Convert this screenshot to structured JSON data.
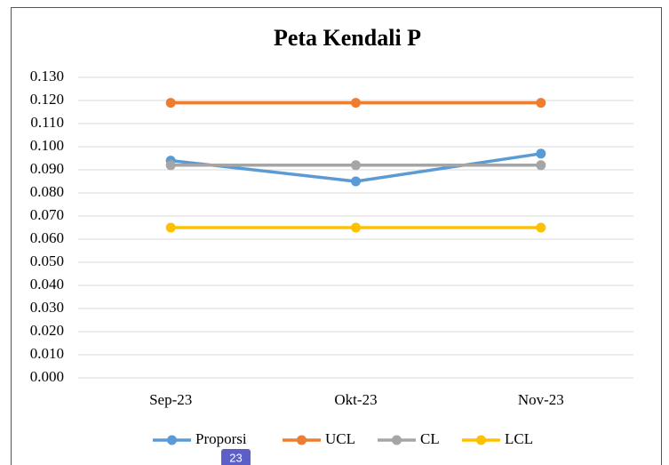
{
  "chart_data": {
    "type": "line",
    "title": "Peta Kendali P",
    "categories": [
      "Sep-23",
      "Okt-23",
      "Nov-23"
    ],
    "series": [
      {
        "name": "Proporsi",
        "color": "#5b9bd5",
        "values": [
          0.094,
          0.085,
          0.097
        ]
      },
      {
        "name": "UCL",
        "color": "#ed7d31",
        "values": [
          0.119,
          0.119,
          0.119
        ]
      },
      {
        "name": "CL",
        "color": "#a5a5a5",
        "values": [
          0.092,
          0.092,
          0.092
        ]
      },
      {
        "name": "LCL",
        "color": "#ffc000",
        "values": [
          0.065,
          0.065,
          0.065
        ]
      }
    ],
    "ylim": [
      0,
      0.13
    ],
    "yticks": [
      {
        "value": 0,
        "label": "0.000"
      },
      {
        "value": 0.01,
        "label": "0.010"
      },
      {
        "value": 0.02,
        "label": "0.020"
      },
      {
        "value": 0.03,
        "label": "0.030"
      },
      {
        "value": 0.04,
        "label": "0.040"
      },
      {
        "value": 0.05,
        "label": "0.050"
      },
      {
        "value": 0.06,
        "label": "0.060"
      },
      {
        "value": 0.07,
        "label": "0.070"
      },
      {
        "value": 0.08,
        "label": "0.080"
      },
      {
        "value": 0.09,
        "label": "0.090"
      },
      {
        "value": 0.1,
        "label": "0.100"
      },
      {
        "value": 0.11,
        "label": "0.110"
      },
      {
        "value": 0.12,
        "label": "0.120"
      },
      {
        "value": 0.13,
        "label": "0.130"
      }
    ],
    "grid": true,
    "legend": "bottom"
  },
  "badge": "23"
}
